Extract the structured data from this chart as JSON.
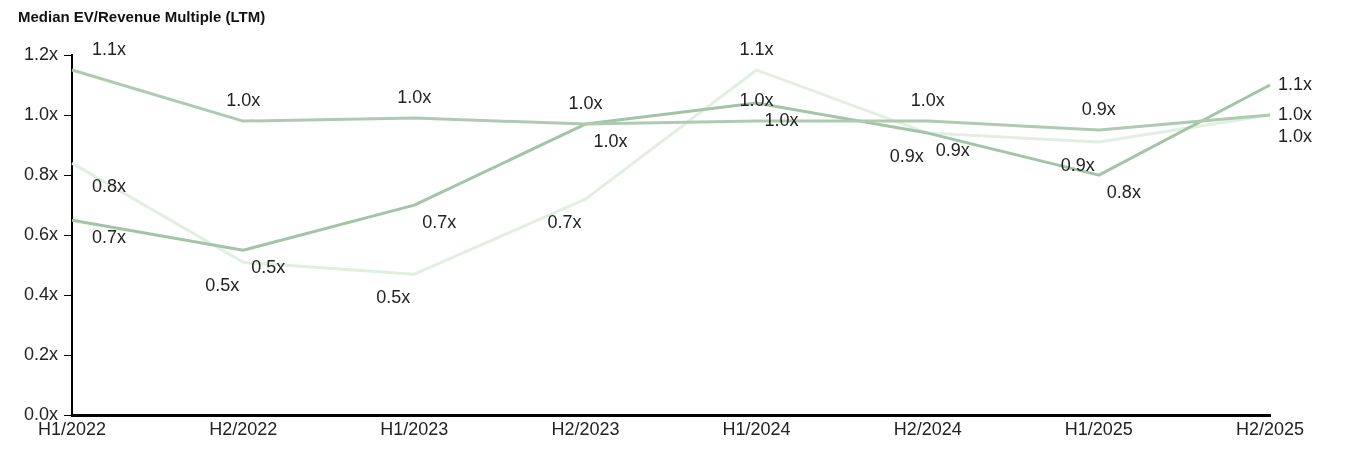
{
  "chart_data": {
    "type": "line",
    "title": "Median EV/Revenue Multiple (LTM)",
    "categories": [
      "H1/2022",
      "H2/2022",
      "H1/2023",
      "H2/2023",
      "H1/2024",
      "H2/2024",
      "H1/2025",
      "H2/2025"
    ],
    "series": [
      {
        "color": "#aecbb2",
        "values": [
          1.15,
          0.98,
          0.99,
          0.97,
          0.98,
          0.98,
          0.95,
          1.0
        ],
        "value_labels": [
          "1.1x",
          "1.0x",
          "1.0x",
          "1.0x",
          "1.0x",
          "1.0x",
          "0.9x",
          "1.0x"
        ]
      },
      {
        "color": "#a3c4a8",
        "values": [
          0.65,
          0.55,
          0.7,
          0.97,
          1.04,
          0.94,
          0.8,
          1.1
        ],
        "value_labels": [
          "0.7x",
          "0.5x",
          "0.7x",
          "1.0x",
          "1.0x",
          "0.9x",
          "0.8x",
          "1.1x"
        ]
      },
      {
        "color": "#e3eee3",
        "values": [
          0.84,
          0.51,
          0.47,
          0.72,
          1.15,
          0.94,
          0.91,
          1.0
        ],
        "value_labels": [
          "0.8x",
          "0.5x",
          "0.5x",
          "0.7x",
          "1.1x",
          "0.9x",
          "0.9x",
          "1.0x"
        ]
      }
    ],
    "ylim": [
      0,
      1.2
    ],
    "yticks": [
      {
        "value": 0,
        "label": "0.0x"
      },
      {
        "value": 0.2,
        "label": "0.2x"
      },
      {
        "value": 0.4,
        "label": "0.4x"
      },
      {
        "value": 0.6,
        "label": "0.6x"
      },
      {
        "value": 0.8,
        "label": "0.8x"
      },
      {
        "value": 1.0,
        "label": "1.0x"
      },
      {
        "value": 1.2,
        "label": "1.2x"
      }
    ],
    "grid": false,
    "legend": false,
    "marker": "none",
    "line_style": "solid"
  }
}
